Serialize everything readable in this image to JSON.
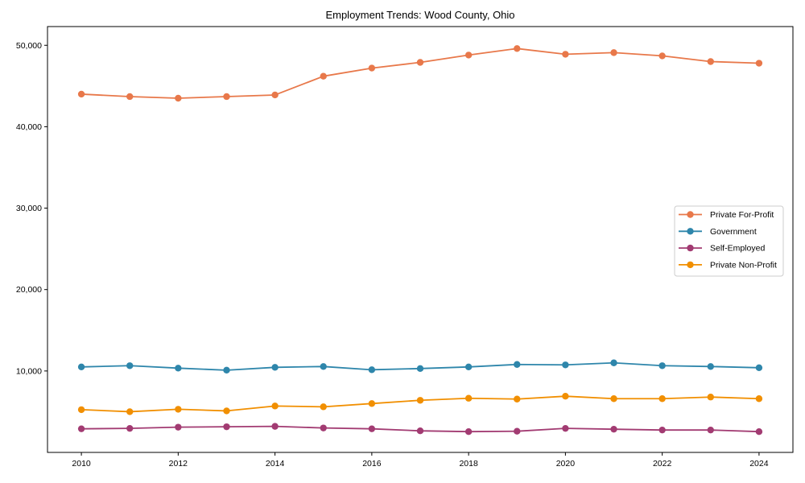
{
  "chart_data": {
    "type": "line",
    "title": "Employment Trends: Wood County, Ohio",
    "x": [
      2010,
      2011,
      2012,
      2013,
      2014,
      2015,
      2016,
      2017,
      2018,
      2019,
      2020,
      2021,
      2022,
      2023,
      2024
    ],
    "series": [
      {
        "name": "Private For-Profit",
        "color": "#E8784A",
        "values": [
          44000,
          43700,
          43500,
          43700,
          43900,
          46200,
          47200,
          47900,
          48800,
          49600,
          48900,
          49100,
          48700,
          48000,
          47800
        ]
      },
      {
        "name": "Government",
        "color": "#2E86AB",
        "values": [
          10500,
          10650,
          10350,
          10100,
          10450,
          10550,
          10150,
          10300,
          10500,
          10800,
          10750,
          11000,
          10650,
          10550,
          10400
        ]
      },
      {
        "name": "Self-Employed",
        "color": "#A23B72",
        "values": [
          2900,
          2950,
          3100,
          3150,
          3200,
          3000,
          2900,
          2650,
          2550,
          2600,
          2950,
          2850,
          2750,
          2750,
          2550
        ]
      },
      {
        "name": "Private Non-Profit",
        "color": "#F18F01",
        "values": [
          5250,
          5000,
          5300,
          5100,
          5700,
          5600,
          6000,
          6400,
          6650,
          6550,
          6900,
          6600,
          6600,
          6800,
          6600
        ]
      }
    ],
    "xticks": {
      "values": [
        2010,
        2012,
        2014,
        2016,
        2018,
        2020,
        2022,
        2024
      ],
      "labels": [
        "2010",
        "2012",
        "2014",
        "2016",
        "2018",
        "2020",
        "2022",
        "2024"
      ]
    },
    "yticks": {
      "values": [
        10000,
        20000,
        30000,
        40000,
        50000
      ],
      "labels": [
        "10,000",
        "20,000",
        "30,000",
        "40,000",
        "50,000"
      ]
    },
    "xlim": [
      2009.3,
      2024.7
    ],
    "ylim": [
      0,
      52300
    ],
    "grid": false,
    "marker": "circle",
    "legend": {
      "position": "center right",
      "entries": [
        "Private For-Profit",
        "Government",
        "Self-Employed",
        "Private Non-Profit"
      ]
    }
  }
}
